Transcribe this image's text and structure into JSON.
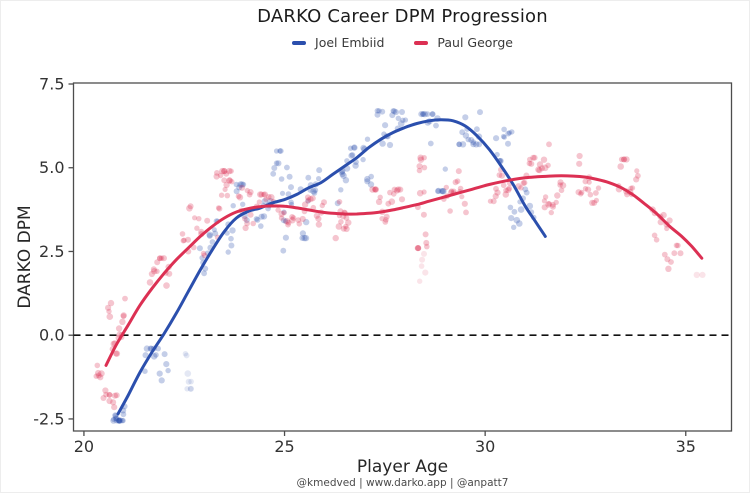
{
  "title": "DARKO Career DPM Progression",
  "footer": {
    "credit": "@kmedved | www.darko.app | @anpatt7"
  },
  "colors": {
    "embiid_blue": "#2b4fad",
    "george_red": "#dc3053",
    "zero_line": "#111111",
    "spine": "#4d4d4d",
    "tick_label": "#333333",
    "axis_label": "#262626"
  },
  "chart_data": {
    "type": "scatter",
    "title": "DARKO Career DPM Progression",
    "xlabel": "Player Age",
    "ylabel": "DARKO DPM",
    "xlim": [
      19.74,
      36.14
    ],
    "ylim": [
      -2.86,
      7.53
    ],
    "x_ticks": [
      20,
      25,
      30,
      35
    ],
    "x_tick_labels": [
      "20",
      "25",
      "30",
      "35"
    ],
    "y_ticks": [
      7.5,
      5.0,
      2.5,
      0.0,
      -2.5
    ],
    "y_tick_labels": [
      "7.5",
      "5.0",
      "2.5",
      "0.0",
      "-2.5"
    ],
    "grid": false,
    "legend_position": "top-center",
    "zero_line": {
      "y": 0,
      "style": "dashed"
    },
    "series": [
      {
        "name": "Joel Embiid",
        "color": "#2b4fad",
        "trend": [
          [
            20.85,
            -2.35
          ],
          [
            21.1,
            -1.8
          ],
          [
            21.4,
            -1.1
          ],
          [
            21.7,
            -0.5
          ],
          [
            22.0,
            0.05
          ],
          [
            22.3,
            0.65
          ],
          [
            22.6,
            1.3
          ],
          [
            22.9,
            1.95
          ],
          [
            23.2,
            2.55
          ],
          [
            23.5,
            3.1
          ],
          [
            23.8,
            3.5
          ],
          [
            24.1,
            3.7
          ],
          [
            24.4,
            3.8
          ],
          [
            24.7,
            3.95
          ],
          [
            25.0,
            4.05
          ],
          [
            25.3,
            4.2
          ],
          [
            25.6,
            4.4
          ],
          [
            25.9,
            4.55
          ],
          [
            26.2,
            4.8
          ],
          [
            26.5,
            5.05
          ],
          [
            26.8,
            5.3
          ],
          [
            27.1,
            5.6
          ],
          [
            27.4,
            5.85
          ],
          [
            27.7,
            6.05
          ],
          [
            28.0,
            6.2
          ],
          [
            28.3,
            6.32
          ],
          [
            28.6,
            6.4
          ],
          [
            28.9,
            6.43
          ],
          [
            29.2,
            6.4
          ],
          [
            29.5,
            6.25
          ],
          [
            29.8,
            5.95
          ],
          [
            30.1,
            5.55
          ],
          [
            30.4,
            5.05
          ],
          [
            30.7,
            4.5
          ],
          [
            31.0,
            3.85
          ],
          [
            31.25,
            3.4
          ],
          [
            31.5,
            2.95
          ]
        ],
        "scatter_clusters": [
          {
            "age": [
              20.75,
              21.0
            ],
            "dpm": [
              -2.55,
              -1.6
            ],
            "n": 18
          },
          {
            "age": [
              21.5,
              22.1
            ],
            "dpm": [
              -1.4,
              -0.4
            ],
            "n": 14
          },
          {
            "age": [
              22.5,
              22.7
            ],
            "dpm": [
              -1.6,
              1.7
            ],
            "n": 8,
            "alpha": 0.13
          },
          {
            "age": [
              22.9,
              23.35
            ],
            "dpm": [
              1.6,
              3.4
            ],
            "n": 14
          },
          {
            "age": [
              23.55,
              24.05
            ],
            "dpm": [
              2.4,
              4.5
            ],
            "n": 16
          },
          {
            "age": [
              24.3,
              24.65
            ],
            "dpm": [
              2.6,
              4.0
            ],
            "n": 10
          },
          {
            "age": [
              24.75,
              25.2
            ],
            "dpm": [
              2.4,
              5.5
            ],
            "n": 20
          },
          {
            "age": [
              25.4,
              25.85
            ],
            "dpm": [
              2.9,
              5.4
            ],
            "n": 16
          },
          {
            "age": [
              26.35,
              26.8
            ],
            "dpm": [
              3.4,
              5.6
            ],
            "n": 16
          },
          {
            "age": [
              26.95,
              27.15
            ],
            "dpm": [
              4.5,
              6.1
            ],
            "n": 8
          },
          {
            "age": [
              27.3,
              28.0
            ],
            "dpm": [
              5.4,
              6.7
            ],
            "n": 20
          },
          {
            "age": [
              28.4,
              29.0
            ],
            "dpm": [
              4.3,
              6.6
            ],
            "n": 18
          },
          {
            "age": [
              29.35,
              29.9
            ],
            "dpm": [
              5.7,
              7.2
            ],
            "n": 16
          },
          {
            "age": [
              30.25,
              30.65
            ],
            "dpm": [
              5.2,
              6.4
            ],
            "n": 12
          },
          {
            "age": [
              30.6,
              31.2
            ],
            "dpm": [
              2.9,
              4.45
            ],
            "n": 14
          }
        ]
      },
      {
        "name": "Paul George",
        "color": "#dc3053",
        "trend": [
          [
            20.55,
            -0.9
          ],
          [
            20.8,
            -0.3
          ],
          [
            21.1,
            0.3
          ],
          [
            21.4,
            0.9
          ],
          [
            21.7,
            1.4
          ],
          [
            22.0,
            1.85
          ],
          [
            22.3,
            2.25
          ],
          [
            22.6,
            2.6
          ],
          [
            22.9,
            2.95
          ],
          [
            23.2,
            3.25
          ],
          [
            23.5,
            3.5
          ],
          [
            23.8,
            3.68
          ],
          [
            24.1,
            3.78
          ],
          [
            24.4,
            3.84
          ],
          [
            24.7,
            3.86
          ],
          [
            25.0,
            3.85
          ],
          [
            25.3,
            3.8
          ],
          [
            25.6,
            3.74
          ],
          [
            25.9,
            3.68
          ],
          [
            26.2,
            3.64
          ],
          [
            26.5,
            3.62
          ],
          [
            26.8,
            3.62
          ],
          [
            27.1,
            3.64
          ],
          [
            27.4,
            3.68
          ],
          [
            27.7,
            3.74
          ],
          [
            28.0,
            3.82
          ],
          [
            28.3,
            3.9
          ],
          [
            28.6,
            4.0
          ],
          [
            28.9,
            4.1
          ],
          [
            29.2,
            4.2
          ],
          [
            29.5,
            4.3
          ],
          [
            29.8,
            4.4
          ],
          [
            30.1,
            4.5
          ],
          [
            30.4,
            4.58
          ],
          [
            30.7,
            4.65
          ],
          [
            31.0,
            4.7
          ],
          [
            31.3,
            4.73
          ],
          [
            31.6,
            4.75
          ],
          [
            31.9,
            4.76
          ],
          [
            32.2,
            4.75
          ],
          [
            32.5,
            4.72
          ],
          [
            32.8,
            4.65
          ],
          [
            33.1,
            4.55
          ],
          [
            33.4,
            4.4
          ],
          [
            33.7,
            4.18
          ],
          [
            34.0,
            3.9
          ],
          [
            34.3,
            3.6
          ],
          [
            34.6,
            3.25
          ],
          [
            34.9,
            2.95
          ],
          [
            35.15,
            2.65
          ],
          [
            35.4,
            2.3
          ]
        ],
        "scatter_clusters": [
          {
            "age": [
              20.3,
              20.8
            ],
            "dpm": [
              -2.15,
              -0.9
            ],
            "n": 16
          },
          {
            "age": [
              20.6,
              21.05
            ],
            "dpm": [
              -0.55,
              1.4
            ],
            "n": 18
          },
          {
            "age": [
              21.65,
              22.15
            ],
            "dpm": [
              1.0,
              2.3
            ],
            "n": 14
          },
          {
            "age": [
              22.45,
              23.05
            ],
            "dpm": [
              1.7,
              3.85
            ],
            "n": 16
          },
          {
            "age": [
              23.3,
              23.7
            ],
            "dpm": [
              2.9,
              4.9
            ],
            "n": 20
          },
          {
            "age": [
              23.85,
              24.2
            ],
            "dpm": [
              3.2,
              4.4
            ],
            "n": 12
          },
          {
            "age": [
              24.3,
              24.7
            ],
            "dpm": [
              3.2,
              4.2
            ],
            "n": 10
          },
          {
            "age": [
              24.85,
              25.25
            ],
            "dpm": [
              3.3,
              4.15
            ],
            "n": 10
          },
          {
            "age": [
              25.35,
              26.0
            ],
            "dpm": [
              2.7,
              4.15
            ],
            "n": 16
          },
          {
            "age": [
              26.3,
              26.6
            ],
            "dpm": [
              2.9,
              4.5
            ],
            "n": 14
          },
          {
            "age": [
              27.2,
              27.9
            ],
            "dpm": [
              2.8,
              4.35
            ],
            "n": 20
          },
          {
            "age": [
              28.3,
              28.55
            ],
            "dpm": [
              2.6,
              5.3
            ],
            "n": 16
          },
          {
            "age": [
              28.35,
              28.5
            ],
            "dpm": [
              1.45,
              2.6
            ],
            "n": 5,
            "alpha": 0.13
          },
          {
            "age": [
              29.0,
              29.5
            ],
            "dpm": [
              2.9,
              4.9
            ],
            "n": 16
          },
          {
            "age": [
              30.15,
              30.65
            ],
            "dpm": [
              4.0,
              5.0
            ],
            "n": 14
          },
          {
            "age": [
              30.85,
              31.25
            ],
            "dpm": [
              4.4,
              5.3
            ],
            "n": 10
          },
          {
            "age": [
              31.3,
              31.6
            ],
            "dpm": [
              4.8,
              5.75
            ],
            "n": 8
          },
          {
            "age": [
              31.45,
              31.95
            ],
            "dpm": [
              3.65,
              4.85
            ],
            "n": 14
          },
          {
            "age": [
              32.3,
              32.8
            ],
            "dpm": [
              3.95,
              5.35
            ],
            "n": 16
          },
          {
            "age": [
              33.3,
              33.8
            ],
            "dpm": [
              4.2,
              5.25
            ],
            "n": 16
          },
          {
            "age": [
              34.15,
              34.6
            ],
            "dpm": [
              2.85,
              3.85
            ],
            "n": 10
          },
          {
            "age": [
              34.5,
              34.85
            ],
            "dpm": [
              1.85,
              2.85
            ],
            "n": 8
          },
          {
            "age": [
              35.25,
              35.4
            ],
            "dpm": [
              1.6,
              1.8
            ],
            "n": 2,
            "alpha": 0.13
          }
        ]
      }
    ]
  }
}
